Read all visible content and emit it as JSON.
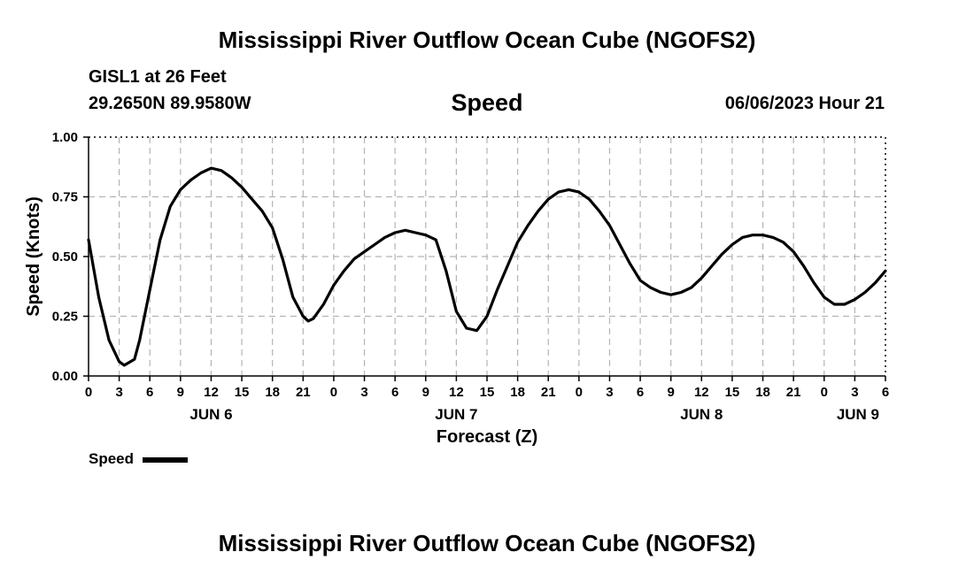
{
  "header": {
    "title": "Mississippi River Outflow Ocean Cube (NGOFS2)",
    "station": "GISL1 at 26 Feet",
    "coords": "29.2650N  89.9580W",
    "parameter": "Speed",
    "datetime": "06/06/2023 Hour 21"
  },
  "footer": {
    "title": "Mississippi River Outflow Ocean Cube (NGOFS2)"
  },
  "legend": {
    "label": "Speed",
    "color": "#000000"
  },
  "chart_data": {
    "type": "line",
    "title": "Speed",
    "xlabel": "Forecast (Z)",
    "ylabel": "Speed (Knots)",
    "x_unit": "hours since 2023-06-06 00Z",
    "xlim": [
      0,
      78
    ],
    "ylim": [
      0,
      1.0
    ],
    "yticks": [
      0,
      0.25,
      0.5,
      0.75,
      1.0
    ],
    "ytick_labels": [
      "0.00",
      "0.25",
      "0.50",
      "0.75",
      "1.00"
    ],
    "xtick_labels": [
      "0",
      "3",
      "6",
      "9",
      "12",
      "15",
      "18",
      "21",
      "0",
      "3",
      "6",
      "9",
      "12",
      "15",
      "18",
      "21",
      "0",
      "3",
      "6",
      "9",
      "12",
      "15",
      "18",
      "21",
      "0",
      "3",
      "6"
    ],
    "date_labels": [
      {
        "label": "JUN 6",
        "hour": 12
      },
      {
        "label": "JUN 7",
        "hour": 36
      },
      {
        "label": "JUN 8",
        "hour": 60
      },
      {
        "label": "JUN 9",
        "hour": 78
      }
    ],
    "grid": true,
    "series": [
      {
        "name": "Speed",
        "color": "#000000",
        "x": [
          0,
          1,
          2,
          3,
          3.5,
          4.5,
          5,
          6,
          7,
          8,
          9,
          10,
          11,
          12,
          13,
          14,
          15,
          16,
          17,
          18,
          19,
          20,
          21,
          21.5,
          22,
          23,
          24,
          25,
          26,
          27,
          28,
          29,
          30,
          31,
          32,
          33,
          34,
          35,
          36,
          37,
          38,
          39,
          40,
          41,
          42,
          43,
          44,
          45,
          46,
          47,
          48,
          49,
          50,
          51,
          52,
          53,
          54,
          55,
          56,
          57,
          58,
          59,
          60,
          61,
          62,
          63,
          64,
          65,
          66,
          67,
          68,
          69,
          70,
          71,
          72,
          73,
          74,
          75,
          76,
          77,
          78
        ],
        "y": [
          0.57,
          0.33,
          0.15,
          0.06,
          0.045,
          0.07,
          0.15,
          0.36,
          0.57,
          0.71,
          0.78,
          0.82,
          0.85,
          0.87,
          0.86,
          0.83,
          0.79,
          0.74,
          0.69,
          0.62,
          0.49,
          0.33,
          0.25,
          0.23,
          0.24,
          0.3,
          0.38,
          0.44,
          0.49,
          0.52,
          0.55,
          0.58,
          0.6,
          0.61,
          0.6,
          0.59,
          0.57,
          0.44,
          0.27,
          0.2,
          0.19,
          0.25,
          0.36,
          0.46,
          0.56,
          0.63,
          0.69,
          0.74,
          0.77,
          0.78,
          0.77,
          0.74,
          0.69,
          0.63,
          0.55,
          0.47,
          0.4,
          0.37,
          0.35,
          0.34,
          0.35,
          0.37,
          0.41,
          0.46,
          0.51,
          0.55,
          0.58,
          0.59,
          0.59,
          0.58,
          0.56,
          0.52,
          0.46,
          0.39,
          0.33,
          0.3,
          0.3,
          0.32,
          0.35,
          0.39,
          0.44
        ]
      }
    ]
  }
}
